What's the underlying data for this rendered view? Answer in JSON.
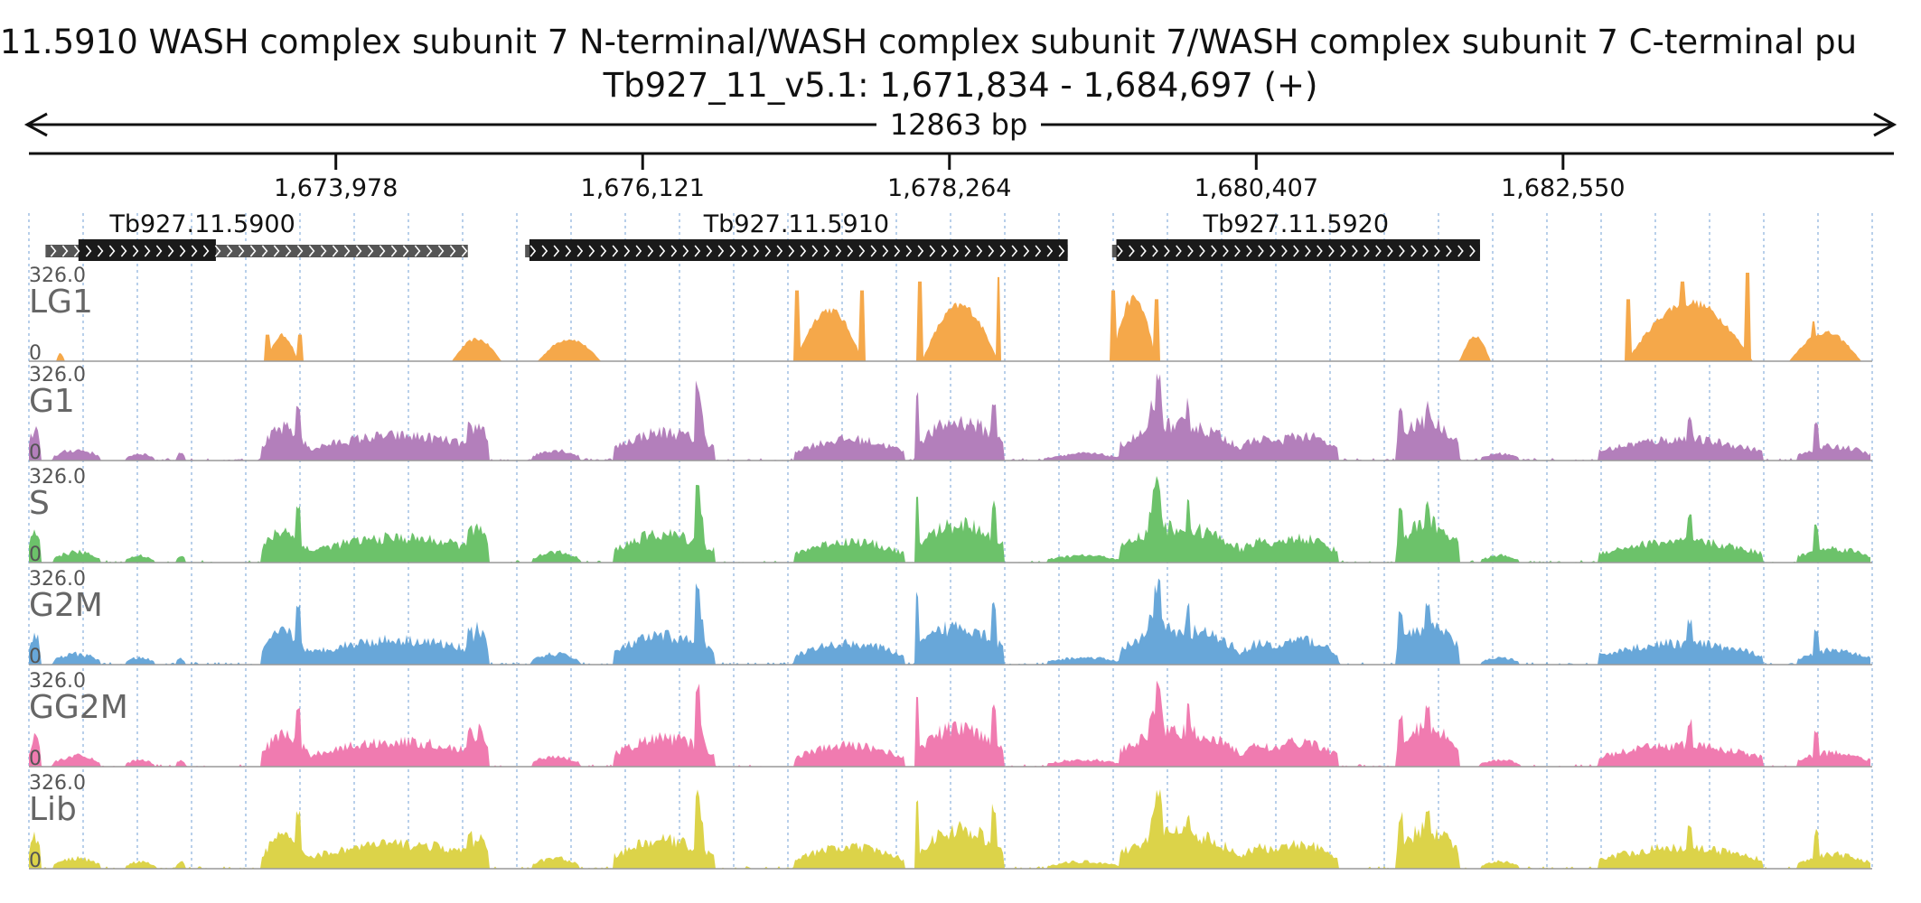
{
  "header": {
    "title": ".11.5910  WASH complex subunit 7  N-terminal/WASH complex subunit 7/WASH complex subunit 7  C-terminal  pu",
    "location": "Tb927_11_v5.1: 1,671,834 - 1,684,697 (+)"
  },
  "ruler": {
    "span_label": "12863 bp",
    "start": 1671834,
    "end": 1684697,
    "ticks": [
      {
        "pos": 1673978,
        "label": "1,673,978"
      },
      {
        "pos": 1676121,
        "label": "1,676,121"
      },
      {
        "pos": 1678264,
        "label": "1,678,264"
      },
      {
        "pos": 1680407,
        "label": "1,680,407"
      },
      {
        "pos": 1682550,
        "label": "1,682,550"
      }
    ]
  },
  "genes": [
    {
      "name": "Tb927.11.5900",
      "start": 1671950,
      "end": 1674900,
      "cds_start": 1672180,
      "cds_end": 1673140
    },
    {
      "name": "Tb927.11.5910",
      "start": 1675300,
      "end": 1679090,
      "cds_start": 1675330,
      "cds_end": 1679090
    },
    {
      "name": "Tb927.11.5920",
      "start": 1679400,
      "end": 1681970,
      "cds_start": 1679430,
      "cds_end": 1681970
    }
  ],
  "colors": {
    "LG1": "#f5a84a",
    "G1": "#b37fbb",
    "S": "#6cc26a",
    "G2M": "#68a7d9",
    "GG2M": "#f07bb0",
    "Lib": "#dcd349",
    "gene_fill": "#1a1a1a",
    "gene_utr": "#555555",
    "grid": "#9bbbe0"
  },
  "chart_data": {
    "type": "area",
    "x_range": [
      1671834,
      1684697
    ],
    "ylim": [
      0,
      326.0
    ],
    "series": [
      {
        "name": "LG1",
        "max_label": "326.0",
        "min_label": "0",
        "profile": "lg1"
      },
      {
        "name": "G1",
        "max_label": "326.0",
        "min_label": "0",
        "profile": "gen"
      },
      {
        "name": "S",
        "max_label": "326.0",
        "min_label": "0",
        "profile": "gen"
      },
      {
        "name": "G2M",
        "max_label": "326.0",
        "min_label": "0",
        "profile": "gen"
      },
      {
        "name": "GG2M",
        "max_label": "326.0",
        "min_label": "0",
        "profile": "gen"
      },
      {
        "name": "Lib",
        "max_label": "326.0",
        "min_label": "0",
        "profile": "gen"
      }
    ]
  }
}
